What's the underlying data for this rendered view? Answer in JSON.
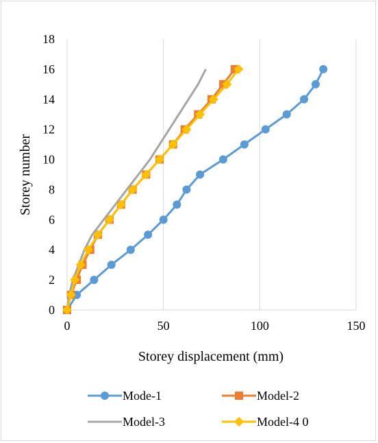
{
  "chart_data": {
    "type": "line",
    "xlabel": "Storey displacement (mm)",
    "ylabel": "Storey number",
    "xlim": [
      0,
      150
    ],
    "ylim": [
      0,
      18
    ],
    "xticks": [
      0,
      50,
      100,
      150
    ],
    "yticks": [
      0,
      2,
      4,
      6,
      8,
      10,
      12,
      14,
      16,
      18
    ],
    "grid": "vertical",
    "legend_position": "bottom",
    "series": [
      {
        "name": "Mode-1",
        "color": "#5b9bd5",
        "marker": "circle",
        "points": [
          [
            0,
            0
          ],
          [
            5,
            1
          ],
          [
            14,
            2
          ],
          [
            23,
            3
          ],
          [
            33,
            4
          ],
          [
            42,
            5
          ],
          [
            50,
            6
          ],
          [
            57,
            7
          ],
          [
            62,
            8
          ],
          [
            69,
            9
          ],
          [
            81,
            10
          ],
          [
            92,
            11
          ],
          [
            103,
            12
          ],
          [
            114,
            13
          ],
          [
            123,
            14
          ],
          [
            129,
            15
          ],
          [
            133,
            16
          ]
        ]
      },
      {
        "name": "Model-2",
        "color": "#ed7d31",
        "marker": "square",
        "points": [
          [
            0,
            0
          ],
          [
            2,
            1
          ],
          [
            5,
            2
          ],
          [
            8,
            3
          ],
          [
            12,
            4
          ],
          [
            16,
            5
          ],
          [
            22,
            6
          ],
          [
            28,
            7
          ],
          [
            34,
            8
          ],
          [
            41,
            9
          ],
          [
            48,
            10
          ],
          [
            55,
            11
          ],
          [
            61,
            12
          ],
          [
            68,
            13
          ],
          [
            75,
            14
          ],
          [
            81,
            15
          ],
          [
            87,
            16
          ]
        ]
      },
      {
        "name": "Model-3",
        "color": "#a5a5a5",
        "marker": "none",
        "points": [
          [
            0,
            0
          ],
          [
            1,
            1
          ],
          [
            3,
            2
          ],
          [
            6,
            3
          ],
          [
            9,
            4
          ],
          [
            13,
            5
          ],
          [
            19,
            6
          ],
          [
            25,
            7
          ],
          [
            31,
            8
          ],
          [
            37,
            9
          ],
          [
            43,
            10
          ],
          [
            48,
            11
          ],
          [
            53,
            12
          ],
          [
            58,
            13
          ],
          [
            63,
            14
          ],
          [
            68,
            15
          ],
          [
            72,
            16
          ]
        ]
      },
      {
        "name": "Model-4 0",
        "color": "#ffc000",
        "marker": "diamond",
        "points": [
          [
            0,
            0
          ],
          [
            2,
            1
          ],
          [
            4,
            2
          ],
          [
            7,
            3
          ],
          [
            11,
            4
          ],
          [
            16,
            5
          ],
          [
            22,
            6
          ],
          [
            28,
            7
          ],
          [
            34,
            8
          ],
          [
            41,
            9
          ],
          [
            48,
            10
          ],
          [
            55,
            11
          ],
          [
            62,
            12
          ],
          [
            69,
            13
          ],
          [
            76,
            14
          ],
          [
            83,
            15
          ],
          [
            89,
            16
          ]
        ]
      }
    ]
  }
}
